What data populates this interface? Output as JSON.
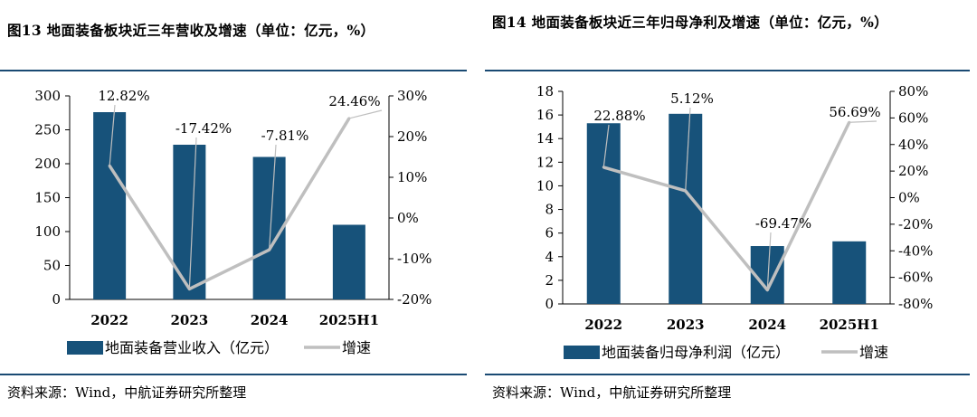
{
  "colors": {
    "bar": "#17527a",
    "line": "#bfbfbf",
    "rule": "#1a4a73"
  },
  "left": {
    "title": "图13  地面装备板块近三年营收及增速（单位：亿元，%）",
    "source": "资料来源：Wind，中航证券研究所整理",
    "legend": {
      "bar": "地面装备营业收入（亿元）",
      "line": "增速"
    }
  },
  "right": {
    "title": "图14  地面装备板块近三年归母净利及增速（单位：亿元，%）",
    "source": "资料来源：Wind，中航证券研究所整理",
    "legend": {
      "bar": "地面装备归母净利润（亿元）",
      "line": "增速"
    }
  },
  "chart_data": [
    {
      "type": "bar",
      "categories": [
        "2022",
        "2023",
        "2024",
        "2025H1"
      ],
      "series": [
        {
          "name": "地面装备营业收入（亿元）",
          "type": "bar",
          "axis": "left",
          "values": [
            276,
            228,
            210,
            110
          ]
        },
        {
          "name": "增速",
          "type": "line",
          "axis": "right",
          "values": [
            12.82,
            -17.42,
            -7.81,
            24.46
          ],
          "labels": [
            "12.82%",
            "-17.42%",
            "-7.81%",
            "24.46%"
          ]
        }
      ],
      "ylim_left": [
        0,
        300
      ],
      "yticks_left": [
        "0",
        "50",
        "100",
        "150",
        "200",
        "250",
        "300"
      ],
      "ylim_right": [
        -20,
        30
      ],
      "yticks_right": [
        "-20%",
        "-10%",
        "0%",
        "10%",
        "20%",
        "30%"
      ],
      "legend": "bottom"
    },
    {
      "type": "bar",
      "categories": [
        "2022",
        "2023",
        "2024",
        "2025H1"
      ],
      "series": [
        {
          "name": "地面装备归母净利润（亿元）",
          "type": "bar",
          "axis": "left",
          "values": [
            15.3,
            16.1,
            4.9,
            5.3
          ]
        },
        {
          "name": "增速",
          "type": "line",
          "axis": "right",
          "values": [
            22.88,
            5.12,
            -69.47,
            56.69
          ],
          "labels": [
            "22.88%",
            "5.12%",
            "-69.47%",
            "56.69%"
          ]
        }
      ],
      "ylim_left": [
        0,
        18
      ],
      "yticks_left": [
        "0",
        "2",
        "4",
        "6",
        "8",
        "10",
        "12",
        "14",
        "16",
        "18"
      ],
      "ylim_right": [
        -80,
        80
      ],
      "yticks_right": [
        "-80%",
        "-60%",
        "-40%",
        "-20%",
        "0%",
        "20%",
        "40%",
        "60%",
        "80%"
      ],
      "legend": "bottom"
    }
  ]
}
